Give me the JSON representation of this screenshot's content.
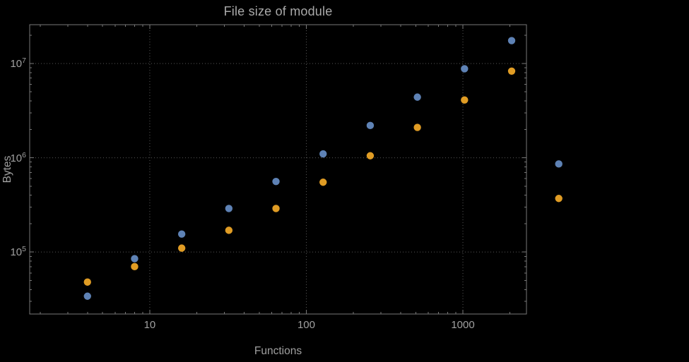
{
  "chart_data": {
    "type": "scatter",
    "title": "File size of module",
    "xlabel": "Functions",
    "ylabel": "Bytes",
    "x_scale": "log",
    "y_scale": "log",
    "grid": true,
    "legend": null,
    "x_range": [
      1.71,
      2547
    ],
    "y_range": [
      22000,
      25800000
    ],
    "x_major_ticks": [
      {
        "label": "10",
        "value": 10
      },
      {
        "label": "100",
        "value": 100
      },
      {
        "label": "1000",
        "value": 1000
      }
    ],
    "y_major_ticks": [
      {
        "mantissa": "10",
        "exponent": "5",
        "value": 100000
      },
      {
        "mantissa": "10",
        "exponent": "6",
        "value": 1000000
      },
      {
        "mantissa": "10",
        "exponent": "7",
        "value": 10000000
      }
    ],
    "x": [
      4,
      8,
      16,
      32,
      64,
      128,
      256,
      512,
      1024,
      2048,
      4096
    ],
    "series": [
      {
        "name": "blue",
        "color": "#5e82b5",
        "values": [
          34000,
          85000,
          155000,
          290000,
          560000,
          1100000,
          2200000,
          4400000,
          8800000,
          17500000,
          860000
        ]
      },
      {
        "name": "orange",
        "color": "#e09c24",
        "values": [
          48000,
          70000,
          110000,
          170000,
          290000,
          550000,
          1050000,
          2100000,
          4100000,
          8300000,
          370000
        ]
      }
    ],
    "colors": {
      "background": "#000000",
      "frame": "#787878",
      "grid": "#575757",
      "tick_label": "#a0a0a0",
      "axis_label": "#a0a0a0",
      "title": "#a9a9a9"
    }
  }
}
